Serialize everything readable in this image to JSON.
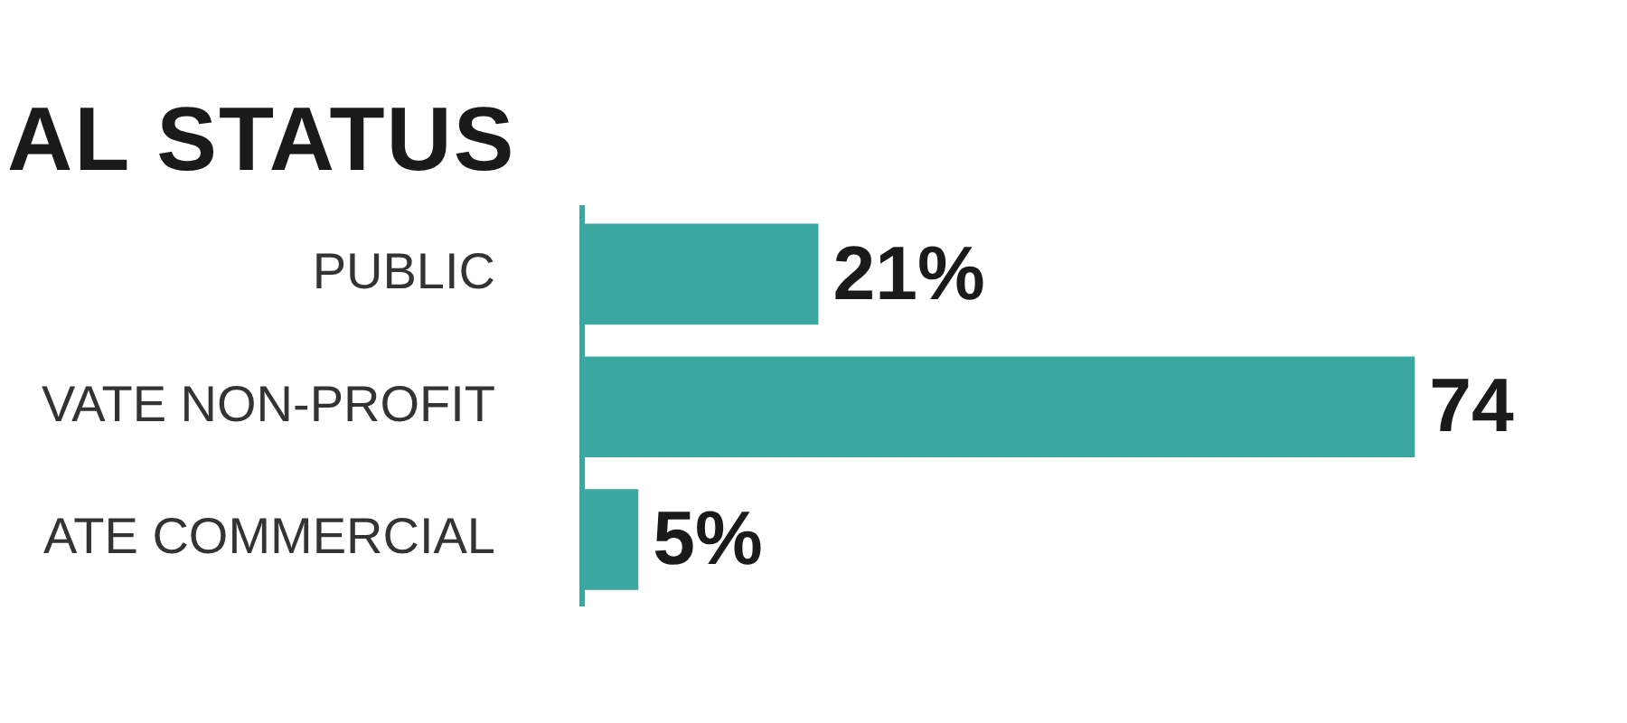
{
  "chart_data": {
    "type": "bar",
    "orientation": "horizontal",
    "title": "AL STATUS",
    "categories": [
      "PUBLIC",
      "VATE NON-PROFIT",
      "ATE COMMERCIAL"
    ],
    "values": [
      21,
      74,
      5
    ],
    "color": "#3aa8a0",
    "value_labels": [
      "21%",
      "74",
      "5%"
    ]
  }
}
